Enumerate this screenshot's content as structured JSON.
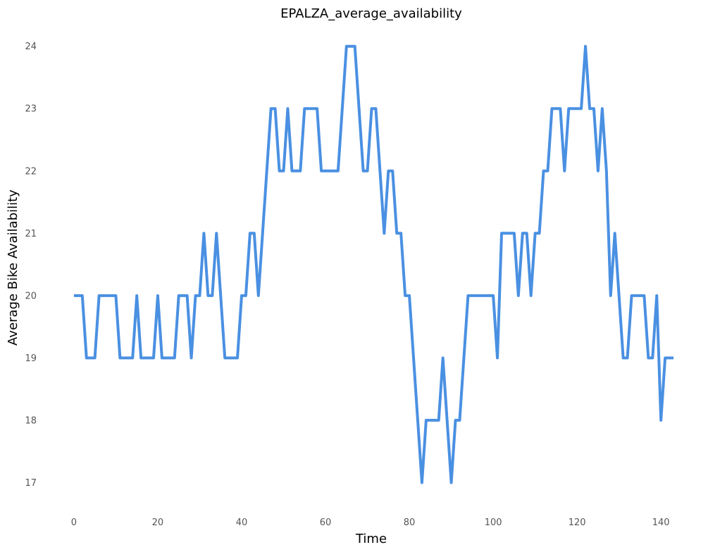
{
  "chart_data": {
    "type": "line",
    "title": "EPALZA_average_availability",
    "xlabel": "Time",
    "ylabel": "Average Bike Availability",
    "xlim": [
      -2,
      144
    ],
    "ylim": [
      16.7,
      24.2
    ],
    "xticks": [
      0,
      20,
      40,
      60,
      80,
      100,
      120,
      140
    ],
    "yticks": [
      17,
      18,
      19,
      20,
      21,
      22,
      23,
      24
    ],
    "grid": false,
    "legend": "none",
    "series": [
      {
        "color": "#4a90e2",
        "x": [
          0,
          1,
          2,
          3,
          4,
          5,
          6,
          7,
          8,
          9,
          10,
          11,
          12,
          13,
          14,
          15,
          16,
          17,
          18,
          19,
          20,
          21,
          22,
          23,
          24,
          25,
          26,
          27,
          28,
          29,
          30,
          31,
          32,
          33,
          34,
          35,
          36,
          37,
          38,
          39,
          40,
          41,
          42,
          43,
          44,
          45,
          46,
          47,
          48,
          49,
          50,
          51,
          52,
          53,
          54,
          55,
          56,
          57,
          58,
          59,
          60,
          61,
          62,
          63,
          64,
          65,
          66,
          67,
          68,
          69,
          70,
          71,
          72,
          73,
          74,
          75,
          76,
          77,
          78,
          79,
          80,
          81,
          82,
          83,
          84,
          85,
          86,
          87,
          88,
          89,
          90,
          91,
          92,
          93,
          94,
          95,
          96,
          97,
          98,
          99,
          100,
          101,
          102,
          103,
          104,
          105,
          106,
          107,
          108,
          109,
          110,
          111,
          112,
          113,
          114,
          115,
          116,
          117,
          118,
          119,
          120,
          121,
          122,
          123,
          124,
          125,
          126,
          127,
          128,
          129,
          130,
          131,
          132,
          133,
          134,
          135,
          136,
          137,
          138,
          139,
          140,
          141,
          142,
          143
        ],
        "values": [
          20,
          20,
          20,
          19,
          19,
          19,
          20,
          20,
          20,
          20,
          20,
          19,
          19,
          19,
          19,
          20,
          19,
          19,
          19,
          19,
          20,
          19,
          19,
          19,
          19,
          20,
          20,
          20,
          19,
          20,
          20,
          21,
          20,
          20,
          21,
          20,
          19,
          19,
          19,
          19,
          20,
          20,
          21,
          21,
          20,
          21,
          22,
          23,
          23,
          22,
          22,
          23,
          22,
          22,
          22,
          23,
          23,
          23,
          23,
          22,
          22,
          22,
          22,
          22,
          23,
          24,
          24,
          24,
          23,
          22,
          22,
          23,
          23,
          22,
          21,
          22,
          22,
          21,
          21,
          20,
          20,
          19,
          18,
          17,
          18,
          18,
          18,
          18,
          19,
          18,
          17,
          18,
          18,
          19,
          20,
          20,
          20,
          20,
          20,
          20,
          20,
          19,
          21,
          21,
          21,
          21,
          20,
          21,
          21,
          20,
          21,
          21,
          22,
          22,
          23,
          23,
          23,
          22,
          23,
          23,
          23,
          23,
          24,
          23,
          23,
          22,
          23,
          22,
          20,
          21,
          20,
          19,
          19,
          20,
          20,
          20,
          20,
          19,
          19,
          20,
          18,
          19,
          19,
          19
        ]
      }
    ]
  }
}
